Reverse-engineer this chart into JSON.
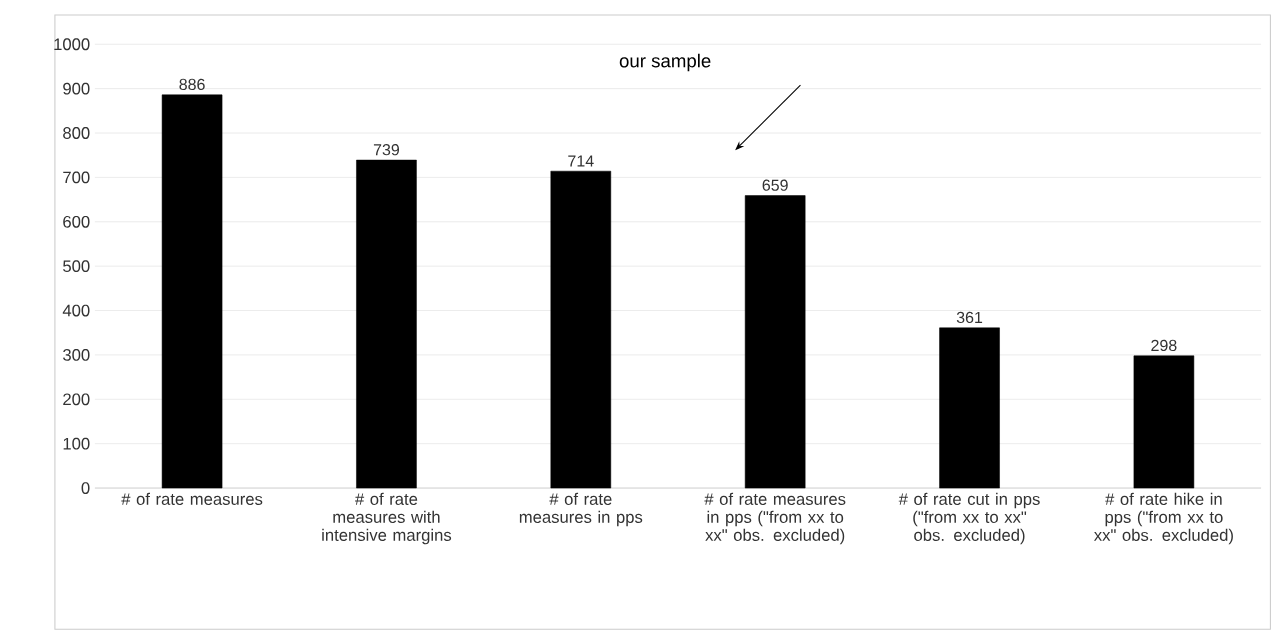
{
  "chart_data": {
    "type": "bar",
    "categories": [
      "# of rate measures",
      "# of rate measures with intensive margins",
      "# of rate measures in pps",
      "# of rate measures in pps (\"from xx to xx\" obs. excluded)",
      "# of rate cut in pps (\"from xx to xx\" obs. excluded)",
      "# of rate hike in pps (\"from xx to xx\" obs. excluded)"
    ],
    "values": [
      886,
      739,
      714,
      659,
      361,
      298
    ],
    "color": "#000000",
    "ylim": [
      0,
      1000
    ],
    "yticks": [
      0,
      100,
      200,
      300,
      400,
      500,
      600,
      700,
      800,
      900,
      1000
    ],
    "grid": "y",
    "data_labels": true,
    "annotations": [
      "our sample"
    ]
  }
}
